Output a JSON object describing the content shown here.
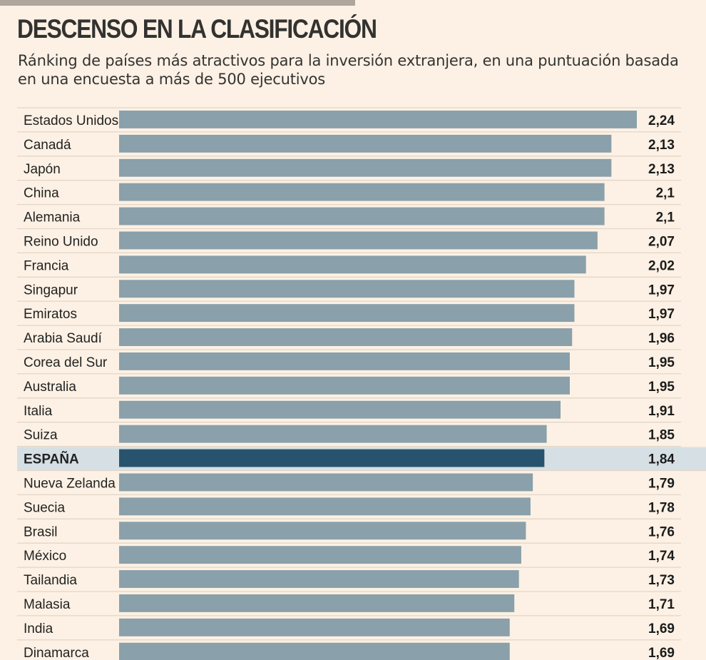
{
  "header": {
    "title": "DESCENSO EN LA CLASIFICACIÓN",
    "subtitle": "Ránking de países más atractivos para la inversión extranjera, en una puntuación basada en una encuesta a más de 500 ejecutivos"
  },
  "colors": {
    "background": "#fcf1e4",
    "bar": "#8aa0aa",
    "highlight_bar": "#28536e",
    "highlight_row": "#d6e0e4",
    "top_stripe": "#b0a79c"
  },
  "chart_data": {
    "type": "bar",
    "orientation": "horizontal",
    "title": "DESCENSO EN LA CLASIFICACIÓN",
    "subtitle": "Ránking de países más atractivos para la inversión extranjera, en una puntuación basada en una encuesta a más de 500 ejecutivos",
    "xlabel": "",
    "ylabel": "",
    "xlim": [
      0,
      2.24
    ],
    "grid": false,
    "legend": "none",
    "highlight": "ESPAÑA",
    "categories": [
      "Estados Unidos",
      "Canadá",
      "Japón",
      "China",
      "Alemania",
      "Reino Unido",
      "Francia",
      "Singapur",
      "Emiratos",
      "Arabia Saudí",
      "Corea del Sur",
      "Australia",
      "Italia",
      "Suiza",
      "ESPAÑA",
      "Nueva Zelanda",
      "Suecia",
      "Brasil",
      "México",
      "Tailandia",
      "Malasia",
      "India",
      "Dinamarca"
    ],
    "values": [
      2.24,
      2.13,
      2.13,
      2.1,
      2.1,
      2.07,
      2.02,
      1.97,
      1.97,
      1.96,
      1.95,
      1.95,
      1.91,
      1.85,
      1.84,
      1.79,
      1.78,
      1.76,
      1.74,
      1.73,
      1.71,
      1.69,
      1.69
    ],
    "value_labels": [
      "2,24",
      "2,13",
      "2,13",
      "2,1",
      "2,1",
      "2,07",
      "2,02",
      "1,97",
      "1,97",
      "1,96",
      "1,95",
      "1,95",
      "1,91",
      "1,85",
      "1,84",
      "1,79",
      "1,78",
      "1,76",
      "1,74",
      "1,73",
      "1,71",
      "1,69",
      "1,69"
    ]
  }
}
